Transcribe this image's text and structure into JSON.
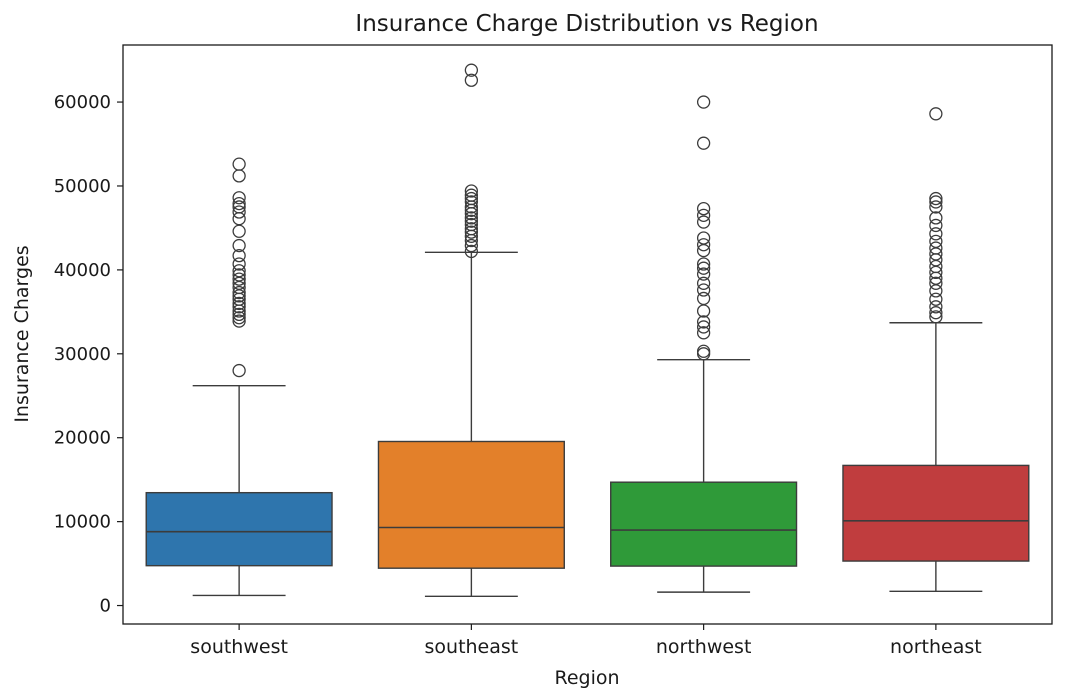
{
  "chart_data": {
    "type": "box",
    "title": "Insurance Charge Distribution vs Region",
    "xlabel": "Region",
    "ylabel": "Insurance Charges",
    "ylim": [
      -2200,
      66800
    ],
    "yticks": [
      0,
      10000,
      20000,
      30000,
      40000,
      50000,
      60000
    ],
    "ytick_labels": [
      "0",
      "10000",
      "20000",
      "30000",
      "40000",
      "50000",
      "60000"
    ],
    "grid": false,
    "categories": [
      "southwest",
      "southeast",
      "northwest",
      "northeast"
    ],
    "boxes": [
      {
        "category": "southwest",
        "color": "#2e75ad",
        "whisker_low": 1200,
        "q1": 4750,
        "median": 8800,
        "q3": 13450,
        "whisker_high": 26200,
        "outliers": [
          28000,
          33900,
          34300,
          34700,
          35100,
          35600,
          36000,
          36500,
          36900,
          37300,
          37900,
          38400,
          38900,
          39400,
          39900,
          40700,
          41700,
          42900,
          44600,
          46100,
          46900,
          47500,
          47900,
          48600,
          51200,
          52600
        ]
      },
      {
        "category": "southeast",
        "color": "#e3802a",
        "whisker_low": 1100,
        "q1": 4450,
        "median": 9300,
        "q3": 19550,
        "whisker_high": 42100,
        "outliers": [
          42200,
          42900,
          43500,
          44000,
          44500,
          44900,
          45400,
          45800,
          46200,
          46700,
          47100,
          47500,
          48100,
          48500,
          48900,
          49400,
          62600,
          63800
        ]
      },
      {
        "category": "northwest",
        "color": "#2f9a39",
        "whisker_low": 1600,
        "q1": 4700,
        "median": 9000,
        "q3": 14700,
        "whisker_high": 29300,
        "outliers": [
          30000,
          30300,
          32500,
          33200,
          33800,
          35100,
          36600,
          37600,
          38400,
          39500,
          40200,
          40700,
          42300,
          43000,
          43800,
          45700,
          46500,
          47300,
          55100,
          60000
        ]
      },
      {
        "category": "northeast",
        "color": "#c03d3e",
        "whisker_low": 1700,
        "q1": 5300,
        "median": 10100,
        "q3": 16700,
        "whisker_high": 33700,
        "outliers": [
          34400,
          34900,
          35600,
          36500,
          37500,
          38400,
          39000,
          39700,
          40400,
          41200,
          41900,
          42600,
          43400,
          44300,
          45300,
          46200,
          47500,
          48100,
          48500,
          58600
        ]
      }
    ]
  }
}
